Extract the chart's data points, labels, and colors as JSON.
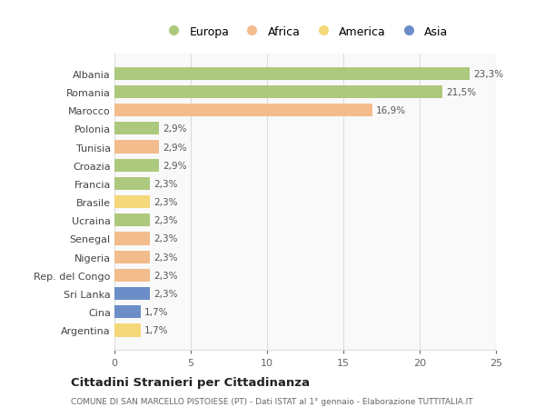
{
  "countries": [
    "Albania",
    "Romania",
    "Marocco",
    "Polonia",
    "Tunisia",
    "Croazia",
    "Francia",
    "Brasile",
    "Ucraina",
    "Senegal",
    "Nigeria",
    "Rep. del Congo",
    "Sri Lanka",
    "Cina",
    "Argentina"
  ],
  "values": [
    23.3,
    21.5,
    16.9,
    2.9,
    2.9,
    2.9,
    2.3,
    2.3,
    2.3,
    2.3,
    2.3,
    2.3,
    2.3,
    1.7,
    1.7
  ],
  "labels": [
    "23,3%",
    "21,5%",
    "16,9%",
    "2,9%",
    "2,9%",
    "2,9%",
    "2,3%",
    "2,3%",
    "2,3%",
    "2,3%",
    "2,3%",
    "2,3%",
    "2,3%",
    "1,7%",
    "1,7%"
  ],
  "colors": [
    "#adc97e",
    "#adc97e",
    "#f2bc8c",
    "#adc97e",
    "#f2bc8c",
    "#adc97e",
    "#adc97e",
    "#f5d87a",
    "#adc97e",
    "#f2bc8c",
    "#f2bc8c",
    "#f2bc8c",
    "#6b8ec9",
    "#6b8ec9",
    "#f5d87a"
  ],
  "legend_labels": [
    "Europa",
    "Africa",
    "America",
    "Asia"
  ],
  "legend_colors": [
    "#adc97e",
    "#f2bc8c",
    "#f5d87a",
    "#6b8ec9"
  ],
  "title": "Cittadini Stranieri per Cittadinanza",
  "subtitle": "COMUNE DI SAN MARCELLO PISTOIESE (PT) - Dati ISTAT al 1° gennaio - Elaborazione TUTTITALIA.IT",
  "xlim": [
    0,
    25
  ],
  "xticks": [
    0,
    5,
    10,
    15,
    20,
    25
  ],
  "background_color": "#ffffff",
  "plot_bg_color": "#f9f9f9",
  "grid_color": "#dddddd"
}
